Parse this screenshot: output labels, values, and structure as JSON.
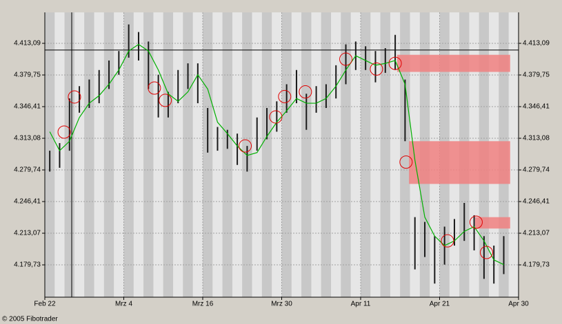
{
  "chart_data": {
    "type": "range",
    "categories": [
      "Feb 22",
      null,
      null,
      null,
      null,
      null,
      null,
      null,
      "Mrz 4",
      null,
      null,
      null,
      null,
      null,
      null,
      null,
      "Mrz 16",
      null,
      null,
      null,
      null,
      null,
      null,
      null,
      "Mrz 30",
      null,
      null,
      null,
      null,
      null,
      null,
      null,
      "Apr 11",
      null,
      null,
      null,
      null,
      null,
      null,
      null,
      "Apr 21",
      null,
      null,
      null,
      null,
      null,
      null,
      null,
      "Apr 30"
    ],
    "high": [
      4300,
      4308,
      4355,
      4368,
      4375,
      4385,
      4395,
      4405,
      4433,
      4425,
      4415,
      4380,
      4362,
      4385,
      4392,
      4392,
      4345,
      4325,
      4322,
      4318,
      4305,
      4335,
      4345,
      4352,
      4370,
      4385,
      4360,
      4368,
      4370,
      4390,
      4412,
      4415,
      4410,
      4405,
      4408,
      4422,
      4375,
      4230,
      4225,
      4210,
      4220,
      4228,
      4245,
      4232,
      4210,
      4200,
      4210,
      null,
      null
    ],
    "low": [
      4278,
      4282,
      4300,
      4340,
      4345,
      4350,
      4365,
      4380,
      4398,
      4395,
      4365,
      4335,
      4335,
      4350,
      4365,
      4350,
      4298,
      4300,
      4302,
      4285,
      4278,
      4300,
      4312,
      4320,
      4340,
      4350,
      4322,
      4340,
      4345,
      4355,
      4370,
      4385,
      4385,
      4372,
      4382,
      4385,
      4310,
      4175,
      4188,
      4160,
      4180,
      4200,
      4205,
      4195,
      4165,
      4160,
      4170,
      null,
      null
    ],
    "bar_color": "#1a1a1a",
    "average": {
      "color": "#00b000",
      "values": [
        4320,
        4300,
        4310,
        4335,
        4350,
        4358,
        4370,
        4385,
        4405,
        4412,
        4405,
        4385,
        4360,
        4352,
        4362,
        4380,
        4365,
        4330,
        4318,
        4305,
        4295,
        4298,
        4315,
        4330,
        4342,
        4355,
        4350,
        4350,
        4355,
        4368,
        4385,
        4400,
        4395,
        4390,
        4392,
        4395,
        4370,
        4290,
        4230,
        4210,
        4200,
        4205,
        4215,
        4220,
        4205,
        4185,
        4180,
        null,
        null
      ]
    },
    "reference_line": 4406,
    "zone_color": "#f08080",
    "zones": [
      {
        "x": 35.7,
        "from": 4383,
        "to": 4401
      },
      {
        "x": 36.9,
        "from": 4265,
        "to": 4310
      },
      {
        "x": 43.6,
        "from": 4218,
        "to": 4230
      }
    ],
    "circle_color": "#e00000",
    "circles": [
      {
        "x": 1.96,
        "y": 4319.6
      },
      {
        "x": 3,
        "y": 4356.6
      },
      {
        "x": 11.1,
        "y": 4366
      },
      {
        "x": 12.2,
        "y": 4353
      },
      {
        "x": 20.3,
        "y": 4305
      },
      {
        "x": 23.4,
        "y": 4335.6
      },
      {
        "x": 24.3,
        "y": 4357
      },
      {
        "x": 26.4,
        "y": 4362
      },
      {
        "x": 30.5,
        "y": 4396.4
      },
      {
        "x": 33.6,
        "y": 4386
      },
      {
        "x": 35.5,
        "y": 4392
      },
      {
        "x": 36.6,
        "y": 4288
      },
      {
        "x": 40.8,
        "y": 4205
      },
      {
        "x": 43.7,
        "y": 4224.7
      },
      {
        "x": 44.75,
        "y": 4192.8
      }
    ],
    "xlim": [
      0,
      48
    ],
    "ylim": [
      4145.7,
      4445.7
    ],
    "yticks": [
      {
        "value": 4413.09,
        "label": "4.413,09"
      },
      {
        "value": 4379.75,
        "label": "4.379,75"
      },
      {
        "value": 4346.41,
        "label": "4.346,41"
      },
      {
        "value": 4313.08,
        "label": "4.313,08"
      },
      {
        "value": 4279.74,
        "label": "4.279,74"
      },
      {
        "value": 4246.41,
        "label": "4.246,41"
      },
      {
        "value": 4213.07,
        "label": "4.213,07"
      },
      {
        "value": 4179.73,
        "label": "4.179,73"
      }
    ],
    "grid": true,
    "footer": "© 2005 Fibotrader"
  }
}
